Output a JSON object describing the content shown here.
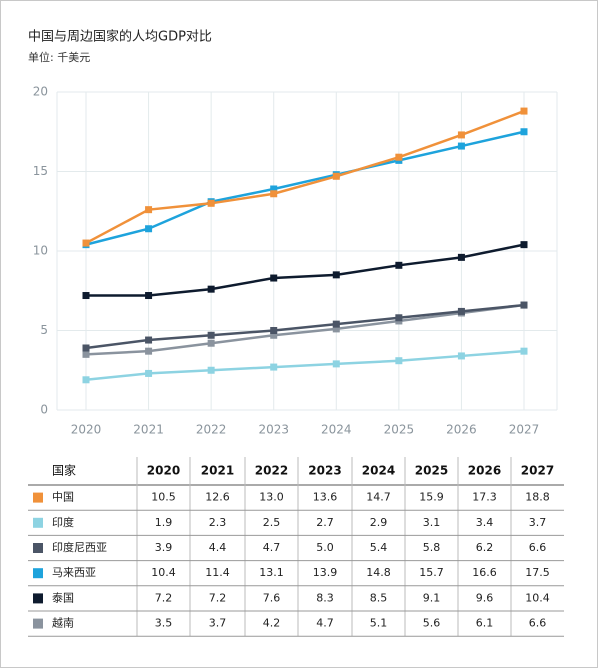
{
  "chart_data": {
    "type": "line",
    "title": "中国与周边国家的人均GDP对比",
    "subtitle": "单位: 千美元",
    "categories": [
      "2020",
      "2021",
      "2022",
      "2023",
      "2024",
      "2025",
      "2026",
      "2027"
    ],
    "ylim": [
      0,
      20
    ],
    "yticks": [
      0,
      5,
      10,
      15,
      20
    ],
    "grid": true,
    "table_header": "国家",
    "series": [
      {
        "name": "中国",
        "color": "#f0913a",
        "values": [
          10.5,
          12.6,
          13.0,
          13.6,
          14.7,
          15.9,
          17.3,
          18.8
        ],
        "value_labels": [
          "10.5",
          "12.6",
          "13.0",
          "13.6",
          "14.7",
          "15.9",
          "17.3",
          "18.8"
        ]
      },
      {
        "name": "印度",
        "color": "#8dd3e2",
        "values": [
          1.9,
          2.3,
          2.5,
          2.7,
          2.9,
          3.1,
          3.4,
          3.7
        ],
        "value_labels": [
          "1.9",
          "2.3",
          "2.5",
          "2.7",
          "2.9",
          "3.1",
          "3.4",
          "3.7"
        ]
      },
      {
        "name": "印度尼西亚",
        "color": "#4b5566",
        "values": [
          3.9,
          4.4,
          4.7,
          5.0,
          5.4,
          5.8,
          6.2,
          6.6
        ],
        "value_labels": [
          "3.9",
          "4.4",
          "4.7",
          "5.0",
          "5.4",
          "5.8",
          "6.2",
          "6.6"
        ]
      },
      {
        "name": "马来西亚",
        "color": "#1ea3dc",
        "values": [
          10.4,
          11.4,
          13.1,
          13.9,
          14.8,
          15.7,
          16.6,
          17.5
        ],
        "value_labels": [
          "10.4",
          "11.4",
          "13.1",
          "13.9",
          "14.8",
          "15.7",
          "16.6",
          "17.5"
        ]
      },
      {
        "name": "泰国",
        "color": "#0e1b2e",
        "values": [
          7.2,
          7.2,
          7.6,
          8.3,
          8.5,
          9.1,
          9.6,
          10.4
        ],
        "value_labels": [
          "7.2",
          "7.2",
          "7.6",
          "8.3",
          "8.5",
          "9.1",
          "9.6",
          "10.4"
        ]
      },
      {
        "name": "越南",
        "color": "#8a939e",
        "values": [
          3.5,
          3.7,
          4.2,
          4.7,
          5.1,
          5.6,
          6.1,
          6.6
        ],
        "value_labels": [
          "3.5",
          "3.7",
          "4.2",
          "4.7",
          "5.1",
          "5.6",
          "6.1",
          "6.6"
        ]
      }
    ]
  }
}
